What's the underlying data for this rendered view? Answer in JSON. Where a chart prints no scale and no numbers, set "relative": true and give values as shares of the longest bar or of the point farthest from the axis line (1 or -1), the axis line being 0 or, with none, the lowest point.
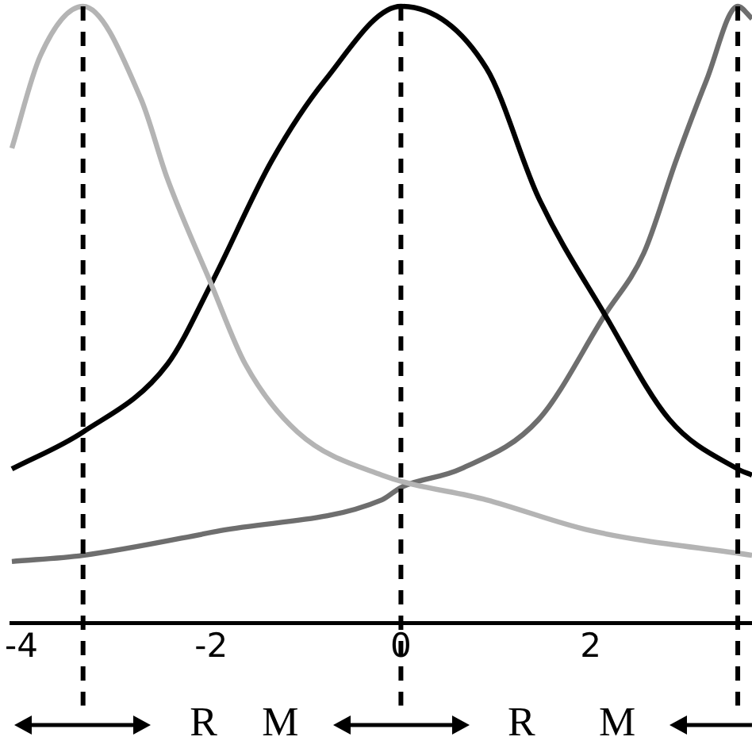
{
  "chart_data": {
    "type": "line",
    "relative": true,
    "xlim": [
      -4.1,
      3.7
    ],
    "xticks": [
      -4,
      -2,
      0,
      2
    ],
    "grid": false,
    "legend": false,
    "marker": "none",
    "line_style": "solid",
    "series": [
      {
        "color": "#b4b4b4",
        "x": [
          -4.1,
          -3.8,
          -3.35,
          -2.74,
          -2.46,
          -2.0,
          -1.64,
          -1.09,
          -0.2,
          0.9,
          2.0,
          3.7
        ],
        "values": [
          0.77,
          0.92,
          1,
          0.85,
          0.72,
          0.55,
          0.42,
          0.31,
          0.24,
          0.2,
          0.15,
          0.11
        ]
      },
      {
        "color": "#000000",
        "x": [
          -4.1,
          -3.35,
          -2.46,
          -2.0,
          -1.36,
          -0.8,
          0,
          0.9,
          1.45,
          2.15,
          2.83,
          3.55,
          3.7
        ],
        "values": [
          0.25,
          0.31,
          0.42,
          0.55,
          0.75,
          0.88,
          1,
          0.9,
          0.69,
          0.5,
          0.33,
          0.25,
          0.24
        ]
      },
      {
        "color": "#6e6e6e",
        "x": [
          -4.1,
          -3.35,
          -1.9,
          -0.2,
          0,
          0.63,
          1.45,
          2.15,
          2.56,
          2.9,
          3.22,
          3.55,
          3.7
        ],
        "values": [
          0.1,
          0.11,
          0.15,
          0.2,
          0.22,
          0.25,
          0.33,
          0.5,
          0.6,
          0.75,
          0.88,
          1,
          0.98
        ]
      }
    ],
    "ref_lines": [
      {
        "axis": "x",
        "value": -3.35,
        "color": "#000000",
        "line_style": "dashed"
      },
      {
        "axis": "x",
        "value": 0,
        "color": "#000000",
        "line_style": "dashed"
      },
      {
        "axis": "x",
        "value": 3.55,
        "color": "#000000",
        "line_style": "dashed"
      }
    ],
    "annotations": [
      "R",
      "M",
      "R",
      "M"
    ]
  }
}
